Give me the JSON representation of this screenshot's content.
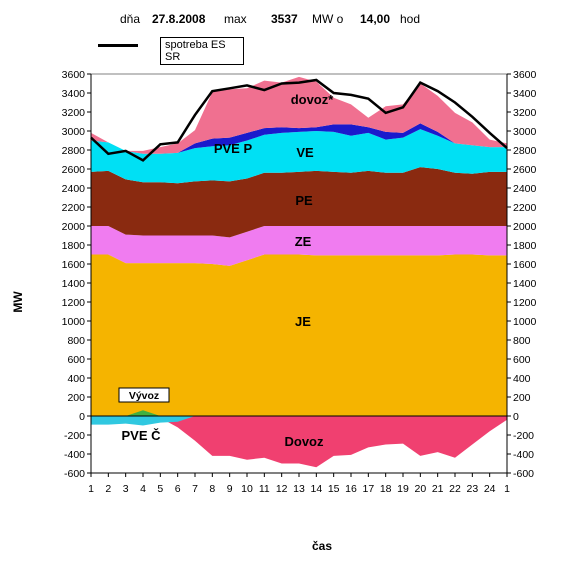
{
  "header": {
    "day_label": "dňa",
    "date": "27.8.2008",
    "max_label": "max",
    "max_value": "3537",
    "unit_at": "MW o",
    "hour": "14,00",
    "hour_label": "hod"
  },
  "legend": {
    "line_label": "spotreba ES SR"
  },
  "colors": {
    "JE": "#f5b400",
    "ZE": "#f07cf0",
    "PE": "#8a2a10",
    "VE": "#00e0f4",
    "PVE_P": "#1a1acc",
    "dovoz_top": "#f07090",
    "dovoz_neg": "#f04070",
    "vyvoz": "#40b040",
    "pve_c": "#30c8e0",
    "consumption": "#000000"
  },
  "chart_data": {
    "type": "area",
    "ylabel": "MW",
    "xlabel": "čas",
    "ylim": [
      -600,
      3600
    ],
    "yticks": [
      -600,
      -400,
      -200,
      0,
      200,
      400,
      600,
      800,
      1000,
      1200,
      1400,
      1600,
      1800,
      2000,
      2200,
      2400,
      2600,
      2800,
      3000,
      3200,
      3400,
      3600
    ],
    "x_ticks": [
      "1",
      "2",
      "3",
      "4",
      "5",
      "6",
      "7",
      "8",
      "9",
      "10",
      "11",
      "12",
      "13",
      "14",
      "15",
      "16",
      "17",
      "18",
      "19",
      "20",
      "21",
      "22",
      "23",
      "24",
      "1"
    ],
    "grid": false,
    "stack_series": [
      {
        "name": "JE",
        "color_key": "JE",
        "values": [
          1700,
          1700,
          1610,
          1610,
          1610,
          1610,
          1610,
          1600,
          1580,
          1640,
          1700,
          1700,
          1700,
          1690,
          1690,
          1690,
          1690,
          1690,
          1690,
          1690,
          1690,
          1700,
          1700,
          1690,
          1690
        ]
      },
      {
        "name": "ZE",
        "color_key": "ZE",
        "values": [
          300,
          300,
          300,
          290,
          290,
          290,
          290,
          300,
          300,
          300,
          300,
          300,
          300,
          310,
          310,
          310,
          310,
          310,
          310,
          310,
          310,
          300,
          300,
          310,
          310
        ]
      },
      {
        "name": "PE",
        "color_key": "PE",
        "values": [
          570,
          580,
          580,
          560,
          560,
          550,
          570,
          580,
          590,
          560,
          560,
          560,
          570,
          580,
          570,
          560,
          580,
          560,
          560,
          620,
          600,
          560,
          550,
          570,
          570
        ]
      },
      {
        "name": "VE",
        "color_key": "VE",
        "values": [
          330,
          300,
          300,
          300,
          300,
          320,
          350,
          360,
          380,
          400,
          400,
          420,
          420,
          420,
          420,
          390,
          400,
          350,
          370,
          400,
          350,
          310,
          300,
          260,
          260
        ]
      },
      {
        "name": "PVE P",
        "color_key": "PVE_P",
        "values": [
          0,
          0,
          0,
          0,
          0,
          0,
          50,
          80,
          80,
          80,
          70,
          60,
          40,
          40,
          80,
          120,
          60,
          80,
          50,
          60,
          40,
          0,
          0,
          0,
          0
        ]
      },
      {
        "name": "dovoz*",
        "color_key": "dovoz_top",
        "values": [
          80,
          0,
          0,
          30,
          70,
          100,
          140,
          490,
          510,
          470,
          500,
          470,
          540,
          480,
          280,
          210,
          100,
          270,
          300,
          420,
          380,
          320,
          240,
          80,
          40
        ]
      }
    ],
    "negative_series": [
      {
        "name": "Dovoz",
        "color_key": "dovoz_neg",
        "values": [
          0,
          0,
          0,
          0,
          -20,
          -120,
          -260,
          -420,
          -420,
          -460,
          -440,
          -500,
          -500,
          -540,
          -420,
          -410,
          -330,
          -300,
          -290,
          -420,
          -380,
          -440,
          -300,
          -160,
          -40
        ]
      },
      {
        "name": "PVE Č",
        "color_key": "pve_c",
        "values": [
          -90,
          -90,
          -80,
          -100,
          -70,
          -60,
          0,
          0,
          0,
          0,
          0,
          0,
          0,
          0,
          0,
          0,
          0,
          0,
          0,
          0,
          0,
          0,
          0,
          0,
          0
        ]
      }
    ],
    "export_series": {
      "name": "Vývoz",
      "color_key": "vyvoz",
      "values": [
        0,
        0,
        0,
        60,
        0,
        0,
        0,
        0,
        0,
        0,
        0,
        0,
        0,
        0,
        0,
        0,
        0,
        0,
        0,
        0,
        0,
        0,
        0,
        0,
        0
      ]
    },
    "consumption": {
      "name": "spotreba ES SR",
      "values": [
        2930,
        2760,
        2790,
        2690,
        2860,
        2880,
        3170,
        3420,
        3450,
        3480,
        3430,
        3500,
        3510,
        3537,
        3400,
        3380,
        3340,
        3190,
        3250,
        3510,
        3420,
        3300,
        3150,
        2980,
        2820
      ]
    },
    "area_labels": [
      "dovoz*",
      "PVE P",
      "VE",
      "PE",
      "ZE",
      "JE",
      "Vývoz",
      "PVE Č",
      "Dovoz"
    ]
  }
}
